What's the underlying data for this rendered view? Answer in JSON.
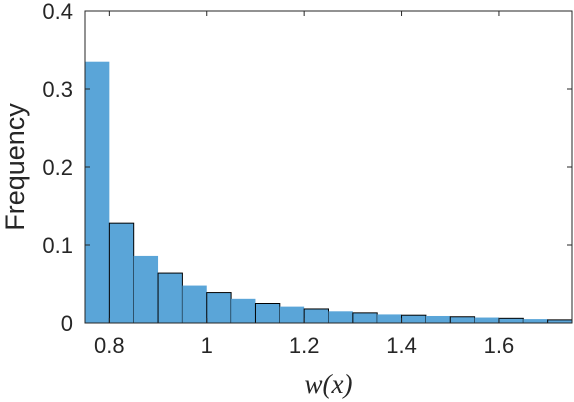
{
  "chart_data": {
    "type": "bar",
    "title": "",
    "xlabel": "w(x)",
    "ylabel": "Frequency",
    "xlim": [
      0.75,
      1.75
    ],
    "ylim": [
      0,
      0.4
    ],
    "xticks": [
      0.8,
      1,
      1.2,
      1.4,
      1.6
    ],
    "xtick_labels": [
      "0.8",
      "1",
      "1.2",
      "1.4",
      "1.6"
    ],
    "yticks": [
      0,
      0.1,
      0.2,
      0.3,
      0.4
    ],
    "ytick_labels": [
      "0",
      "0.1",
      "0.2",
      "0.3",
      "0.4"
    ],
    "bar_color": "#5aa5d8",
    "edge_color": "#000000",
    "bin_width": 0.05,
    "bin_starts": [
      0.75,
      0.8,
      0.85,
      0.9,
      0.95,
      1.0,
      1.05,
      1.1,
      1.15,
      1.2,
      1.25,
      1.3,
      1.35,
      1.4,
      1.45,
      1.5,
      1.55,
      1.6,
      1.65,
      1.7
    ],
    "values": [
      0.335,
      0.128,
      0.086,
      0.064,
      0.048,
      0.039,
      0.031,
      0.025,
      0.021,
      0.018,
      0.015,
      0.013,
      0.011,
      0.01,
      0.009,
      0.008,
      0.007,
      0.006,
      0.005,
      0.004
    ],
    "grid": false,
    "legend": "none"
  }
}
